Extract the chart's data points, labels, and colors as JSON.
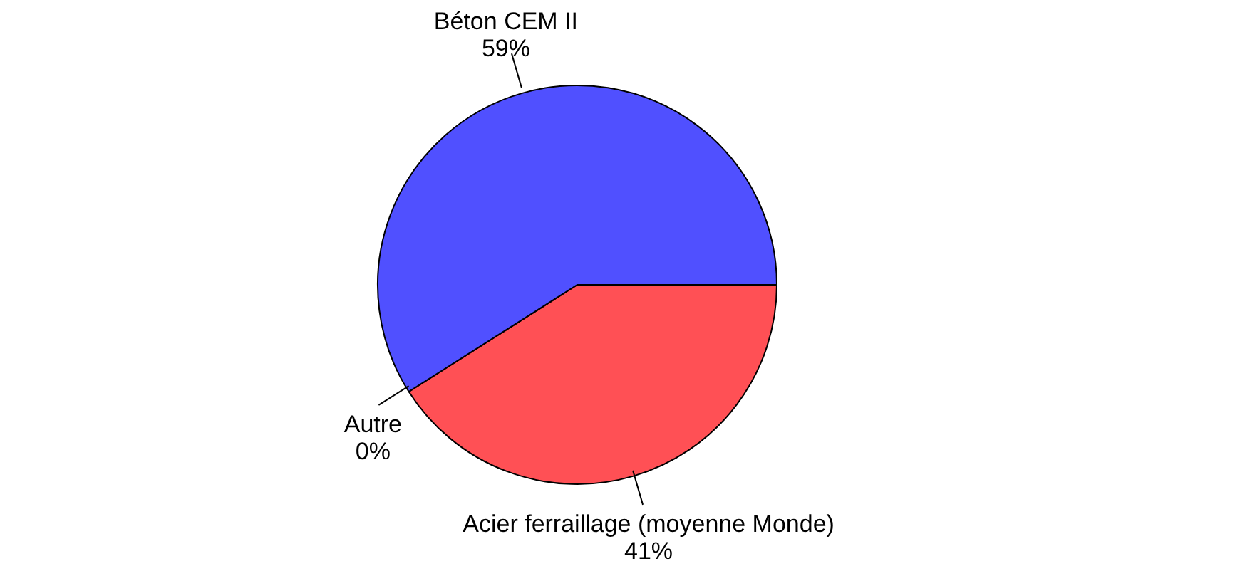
{
  "chart_data": {
    "type": "pie",
    "categories": [
      "Acier ferraillage (moyenne Monde)",
      "Autre",
      "Béton CEM II"
    ],
    "values": [
      41,
      0,
      59
    ],
    "colors": [
      "#ff5055",
      "#55cc55",
      "#5050ff"
    ],
    "value_labels": [
      "41%",
      "0%",
      "59%"
    ]
  }
}
